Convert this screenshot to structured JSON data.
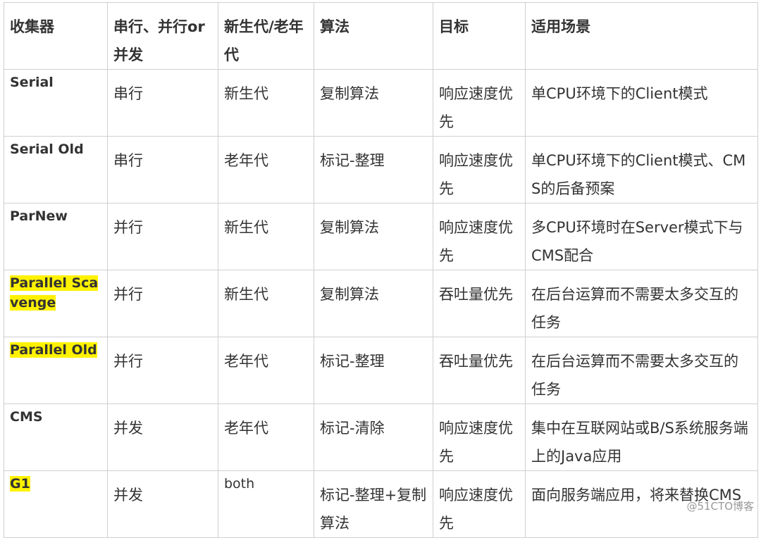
{
  "table": {
    "header": [
      "收集器",
      "串行、并行or并发",
      "新生代/老年代",
      "算法",
      "目标",
      "适用场景"
    ],
    "rows": [
      [
        "Serial",
        "串行",
        "新生代",
        "复制算法",
        "响应速度优先",
        "单CPU环境下的Client模式"
      ],
      [
        "Serial Old",
        "串行",
        "老年代",
        "标记-整理",
        "响应速度优先",
        "单CPU环境下的Client模式、CMS的后备预案"
      ],
      [
        "ParNew",
        "并行",
        "新生代",
        "复制算法",
        "响应速度优先",
        "多CPU环境时在Server模式下与CMS配合"
      ],
      [
        "Parallel Scavenge",
        "并行",
        "新生代",
        "复制算法",
        "吞吐量优先",
        "在后台运算而不需要太多交互的任务"
      ],
      [
        "Parallel Old",
        "并行",
        "老年代",
        "标记-整理",
        "吞吐量优先",
        "在后台运算而不需要太多交互的任务"
      ],
      [
        "CMS",
        "并发",
        "老年代",
        "标记-清除",
        "响应速度优先",
        "集中在互联网站或B/S系统服务端上的Java应用"
      ],
      [
        "G1",
        "并发",
        "both",
        "标记-整理+复制算法",
        "响应速度优先",
        "面向服务端应用，将来替换CMS"
      ]
    ]
  },
  "watermark": "@51CTO博客"
}
